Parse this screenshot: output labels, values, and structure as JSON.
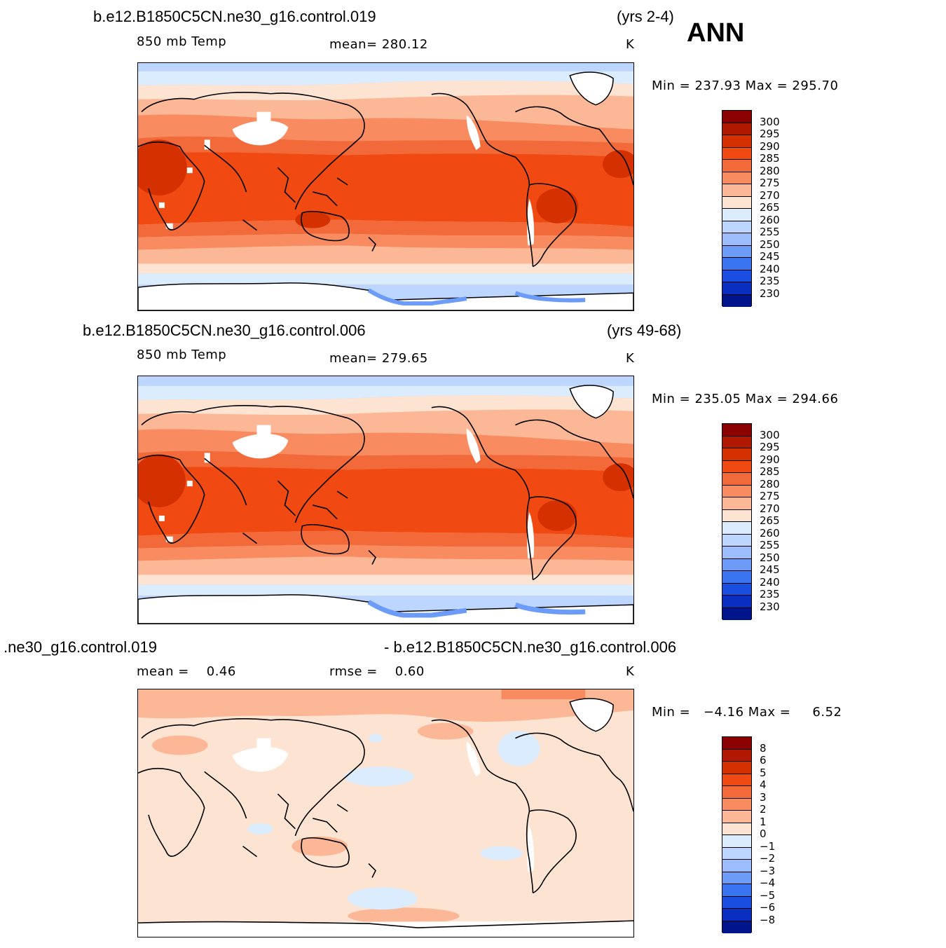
{
  "season": "ANN",
  "units": "K",
  "panels": [
    {
      "case_left": "b.e12.B1850C5CN.ne30_g16.control.019",
      "case_right": "(yrs 2-4)",
      "variable": "850 mb Temp",
      "stat": "mean= 280.12",
      "minmax": "Min = 237.93 Max = 295.70",
      "colorbar_labels": [
        "300",
        "295",
        "290",
        "285",
        "280",
        "275",
        "270",
        "265",
        "260",
        "255",
        "250",
        "245",
        "240",
        "235",
        "230"
      ]
    },
    {
      "case_left": "b.e12.B1850C5CN.ne30_g16.control.006",
      "case_right": "(yrs 49-68)",
      "variable": "850 mb Temp",
      "stat": "mean= 279.65",
      "minmax": "Min = 235.05 Max = 294.66",
      "colorbar_labels": [
        "300",
        "295",
        "290",
        "285",
        "280",
        "275",
        "270",
        "265",
        "260",
        "255",
        "250",
        "245",
        "240",
        "235",
        "230"
      ]
    },
    {
      "case_left": ".ne30_g16.control.019",
      "case_right": "- b.e12.B1850C5CN.ne30_g16.control.006",
      "stat_mean": "mean =    0.46",
      "stat_rmse": "rmse =    0.60",
      "minmax": "Min =   −4.16 Max =     6.52",
      "colorbar_labels": [
        "8",
        "6",
        "5",
        "4",
        "3",
        "2",
        "1",
        "0",
        "−1",
        "−2",
        "−3",
        "−4",
        "−5",
        "−6",
        "−8"
      ]
    }
  ],
  "colors": {
    "abs_scale": [
      "#8b0000",
      "#b01800",
      "#d43000",
      "#f04a12",
      "#f26a3a",
      "#f88c60",
      "#fcb896",
      "#fde4d2",
      "#dcecff",
      "#bcd6ff",
      "#9cbcfc",
      "#6c9cf8",
      "#3a74f0",
      "#1a4ee0",
      "#0a2ec0",
      "#00148c"
    ],
    "diff_scale": [
      "#8b0000",
      "#b01800",
      "#d43000",
      "#f04a12",
      "#f26a3a",
      "#f88c60",
      "#fcb896",
      "#fde4d2",
      "#dcecff",
      "#bcd6ff",
      "#9cbcfc",
      "#6c9cf8",
      "#3a74f0",
      "#1a4ee0",
      "#0a2ec0",
      "#00148c"
    ]
  }
}
